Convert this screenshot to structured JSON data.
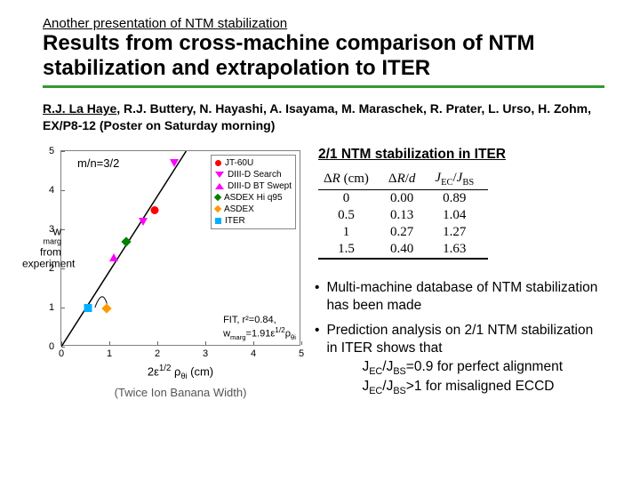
{
  "header": {
    "overline": "Another presentation of NTM stabilization",
    "title": "Results from cross-machine comparison of NTM stabilization and extrapolation to ITER",
    "rule_color": "#339933"
  },
  "authors": {
    "primary": "R.J. La Haye",
    "rest": ", R.J. Buttery, N. Hayashi, A. Isayama, M. Maraschek, R. Prater, L. Urso, H. Zohm, EX/P8-12 (Poster on Saturday morning)"
  },
  "chart": {
    "type": "scatter",
    "mn_label": "m/n=3/2",
    "xlabel_html": "2ε<span class='sup' style='font-size:0.75em;vertical-align:super'>1/2</span> ρ<span class='sub'>θi</span> (cm)",
    "xlabel2": "(Twice Ion Banana Width)",
    "ylabel_lines": [
      "w",
      "marg",
      "from",
      "experiment"
    ],
    "xlim": [
      0,
      5
    ],
    "ylim": [
      0,
      5
    ],
    "xticks": [
      0,
      1,
      2,
      3,
      4,
      5
    ],
    "yticks": [
      0,
      1,
      2,
      3,
      4,
      5
    ],
    "axis_color": "#808080",
    "diag_line_color": "#000000",
    "legend": [
      {
        "label": "JT-60U",
        "shape": "circle",
        "color": "#ff0000"
      },
      {
        "label": "DIII-D Search",
        "shape": "tri-down",
        "color": "#ff00ff"
      },
      {
        "label": "DIII-D BT Swept",
        "shape": "tri-up",
        "color": "#ff00ff"
      },
      {
        "label": "ASDEX Hi q95",
        "shape": "diamond",
        "color": "#008000"
      },
      {
        "label": "ASDEX",
        "shape": "diamond",
        "color": "#ff9900"
      },
      {
        "label": "ITER",
        "shape": "square",
        "color": "#00b0ff"
      }
    ],
    "points": [
      {
        "x": 0.55,
        "y": 0.95,
        "shape": "square",
        "color": "#00b0ff"
      },
      {
        "x": 0.95,
        "y": 0.95,
        "shape": "diamond",
        "color": "#ff9900"
      },
      {
        "x": 1.1,
        "y": 2.25,
        "shape": "tri-up",
        "color": "#ff00ff"
      },
      {
        "x": 1.35,
        "y": 2.65,
        "shape": "diamond",
        "color": "#008000"
      },
      {
        "x": 1.7,
        "y": 3.15,
        "shape": "tri-down",
        "color": "#ff00ff"
      },
      {
        "x": 1.95,
        "y": 3.45,
        "shape": "circle",
        "color": "#ff0000"
      },
      {
        "x": 2.35,
        "y": 4.65,
        "shape": "tri-down",
        "color": "#ff00ff"
      }
    ],
    "fit_lines": [
      "FIT, r²=0.84,",
      "w_marg=1.91ε^{1/2}ρ_{θi}"
    ]
  },
  "table": {
    "title": "2/1 NTM stabilization in ITER",
    "headers": [
      "ΔR (cm)",
      "ΔR/d",
      "J_EC/J_BS"
    ],
    "rows": [
      [
        "0",
        "0.00",
        "0.89"
      ],
      [
        "0.5",
        "0.13",
        "1.04"
      ],
      [
        "1",
        "0.27",
        "1.27"
      ],
      [
        "1.5",
        "0.40",
        "1.63"
      ]
    ]
  },
  "bullets": {
    "items": [
      "Multi-machine database of NTM stabilization has been made"
    ],
    "item2_main": "Prediction analysis on 2/1 NTM stabilization in ITER shows that",
    "item2_line1_a": "J",
    "item2_line1_b": "/J",
    "item2_line1_c": "=0.9 for perfect alignment",
    "item2_line2_a": "J",
    "item2_line2_b": "/J",
    "item2_line2_c": ">1 for misaligned ECCD",
    "sub_ec": "EC",
    "sub_bs": "BS"
  }
}
